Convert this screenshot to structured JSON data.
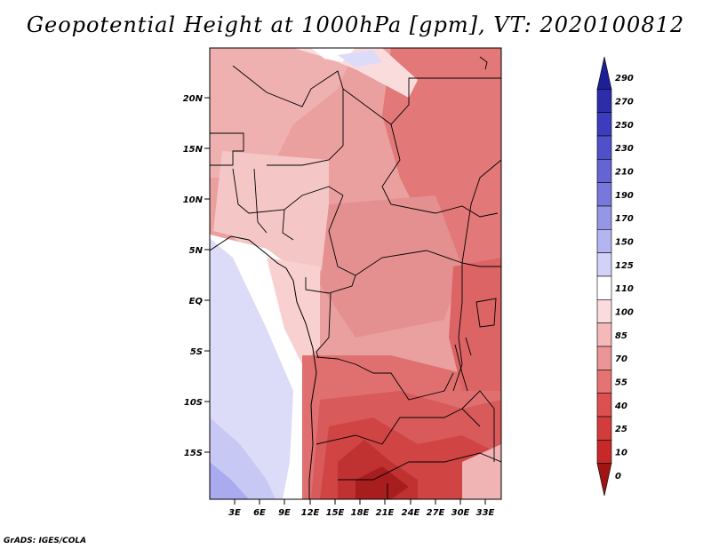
{
  "title": "Geopotential Height at 1000hPa [gpm], VT: 2020100812",
  "credit": "GrADS: IGES/COLA",
  "lat_labels": [
    "20N",
    "15N",
    "10N",
    "5N",
    "EQ",
    "5S",
    "10S",
    "15S"
  ],
  "lon_labels": [
    "3E",
    "6E",
    "9E",
    "12E",
    "15E",
    "18E",
    "21E",
    "24E",
    "27E",
    "30E",
    "33E"
  ],
  "colorbar": {
    "labels": [
      "290",
      "270",
      "250",
      "230",
      "210",
      "190",
      "170",
      "150",
      "125",
      "110",
      "100",
      "85",
      "70",
      "55",
      "40",
      "25",
      "10",
      "0"
    ],
    "colors": [
      "#1e1e96",
      "#2d2daa",
      "#3c3cbe",
      "#5050c8",
      "#6464d2",
      "#7878dc",
      "#9696e6",
      "#b4b4f0",
      "#d2d2f8",
      "#ffffff",
      "#fadcdc",
      "#f5b9b9",
      "#eb9696",
      "#e67373",
      "#dc5050",
      "#d23c3c",
      "#c82828",
      "#a01414"
    ]
  },
  "chart_data": {
    "type": "heatmap",
    "title": "Geopotential Height at 1000hPa [gpm], VT: 2020100812",
    "variable": "Geopotential Height at 1000hPa",
    "units": "gpm",
    "valid_time": "2020100812",
    "lon_range": [
      0,
      34.5
    ],
    "lat_range": [
      -20,
      24
    ],
    "color_levels": [
      0,
      10,
      25,
      40,
      55,
      70,
      85,
      100,
      110,
      125,
      150,
      170,
      190,
      210,
      230,
      250,
      270,
      290
    ]
  }
}
